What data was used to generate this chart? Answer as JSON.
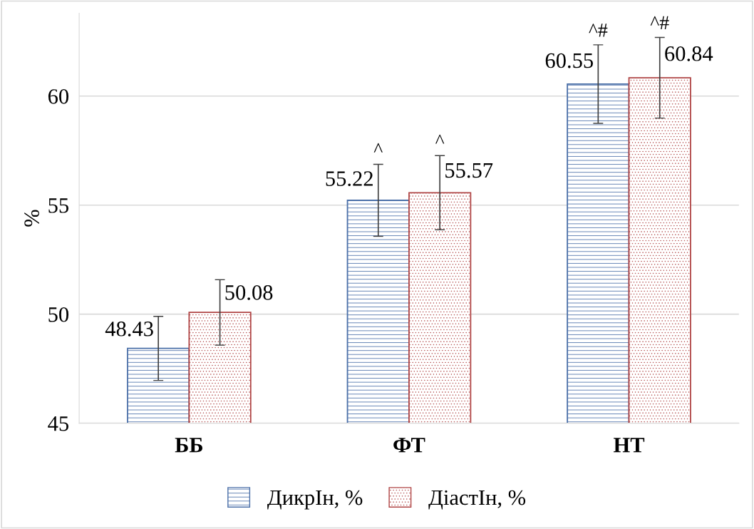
{
  "chart_data": {
    "type": "bar",
    "ylabel": "%",
    "categories": [
      "ББ",
      "ФТ",
      "НТ"
    ],
    "series": [
      {
        "name": "ДикрІн, %",
        "color": "#4a6fa8",
        "values": [
          48.43,
          55.22,
          60.55
        ],
        "errors": [
          1.47,
          1.65,
          1.8
        ]
      },
      {
        "name": "ДіастІн, %",
        "color": "#b04545",
        "values": [
          50.08,
          55.57,
          60.84
        ],
        "errors": [
          1.5,
          1.7,
          1.85
        ]
      }
    ],
    "ylim": [
      45,
      63.8
    ],
    "yticks": [
      45,
      50,
      55,
      60
    ],
    "grid": "y",
    "legend": "bottom",
    "data_labels": true,
    "annotations": [
      "^",
      "^",
      "^#",
      "^#"
    ]
  }
}
